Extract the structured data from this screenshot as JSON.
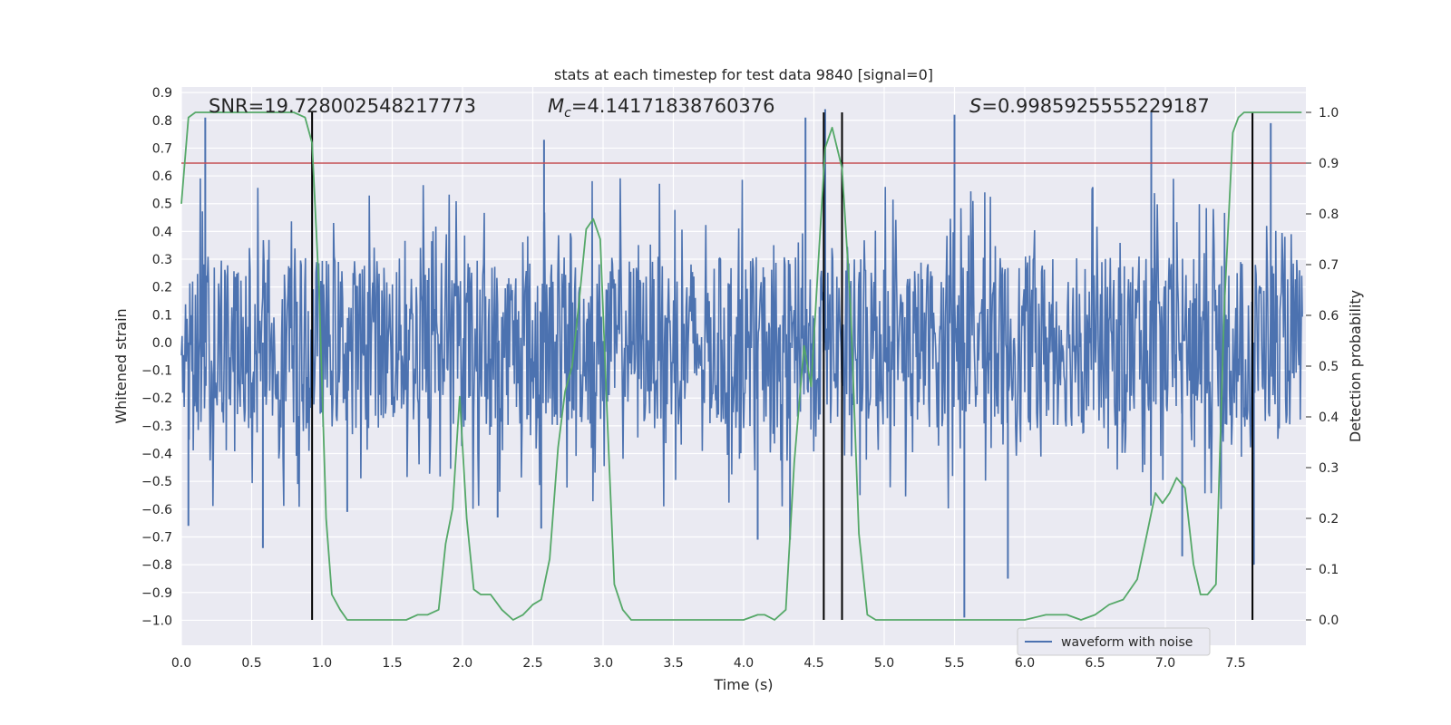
{
  "chart_data": {
    "type": "line",
    "title": "stats at each timestep for test data 9840 [signal=0]",
    "xlabel": "Time (s)",
    "ylabel_left": "Whitened strain",
    "ylabel_right": "Detection probability",
    "xlim": [
      0.0,
      8.0
    ],
    "ylim_left": [
      -1.09,
      0.92
    ],
    "ylim_right": [
      -0.05,
      1.05
    ],
    "grid": true,
    "x_ticks": [
      "0.0",
      "0.5",
      "1.0",
      "1.5",
      "2.0",
      "2.5",
      "3.0",
      "3.5",
      "4.0",
      "4.5",
      "5.0",
      "5.5",
      "6.0",
      "6.5",
      "7.0",
      "7.5"
    ],
    "y_ticks_left": [
      "0.9",
      "0.8",
      "0.7",
      "0.6",
      "0.5",
      "0.4",
      "0.3",
      "0.2",
      "0.1",
      "0.0",
      "-0.1",
      "-0.2",
      "-0.3",
      "-0.4",
      "-0.5",
      "-0.6",
      "-0.7",
      "-0.8",
      "-0.9",
      "-1.0"
    ],
    "y_ticks_right": [
      "1.0",
      "0.9",
      "0.8",
      "0.7",
      "0.6",
      "0.5",
      "0.4",
      "0.3",
      "0.2",
      "0.1",
      "0.0"
    ],
    "annotations": {
      "snr": "SNR=19.728002548217773",
      "mc_symbol": "M",
      "mc_sub": "c",
      "mc_value": "=4.14171838760376",
      "s_symbol": "S",
      "s_value": "=0.9985925555229187"
    },
    "threshold": {
      "value": 0.9,
      "axis": "right",
      "color": "#c44e52"
    },
    "vertical_lines": [
      0.93,
      4.57,
      4.7,
      7.62
    ],
    "waveform": {
      "name": "waveform with noise",
      "color": "#4c72b0",
      "typical_range": [
        -0.45,
        0.45
      ],
      "peaks": [
        {
          "t": 0.17,
          "v": 0.81
        },
        {
          "t": 0.58,
          "v": -0.74
        },
        {
          "t": 0.05,
          "v": -0.66
        },
        {
          "t": 1.18,
          "v": -0.61
        },
        {
          "t": 2.25,
          "v": -0.63
        },
        {
          "t": 2.56,
          "v": -0.67
        },
        {
          "t": 2.58,
          "v": 0.73
        },
        {
          "t": 4.44,
          "v": 0.81
        },
        {
          "t": 4.58,
          "v": 0.84
        },
        {
          "t": 4.1,
          "v": -0.71
        },
        {
          "t": 4.33,
          "v": -0.71
        },
        {
          "t": 5.5,
          "v": 0.82
        },
        {
          "t": 5.57,
          "v": -0.99
        },
        {
          "t": 5.88,
          "v": -0.85
        },
        {
          "t": 6.9,
          "v": 0.83
        },
        {
          "t": 7.12,
          "v": -0.77
        },
        {
          "t": 7.63,
          "v": -0.8
        },
        {
          "t": 7.75,
          "v": 0.79
        }
      ]
    },
    "probability": {
      "name": "detection probability",
      "color": "#55a868",
      "x": [
        0.0,
        0.05,
        0.1,
        0.2,
        0.3,
        0.5,
        0.7,
        0.8,
        0.88,
        0.93,
        0.98,
        1.03,
        1.07,
        1.13,
        1.18,
        1.3,
        1.45,
        1.6,
        1.68,
        1.75,
        1.83,
        1.88,
        1.93,
        1.98,
        2.03,
        2.08,
        2.13,
        2.2,
        2.28,
        2.36,
        2.43,
        2.5,
        2.56,
        2.62,
        2.68,
        2.73,
        2.78,
        2.83,
        2.88,
        2.93,
        2.98,
        3.03,
        3.08,
        3.14,
        3.2,
        3.26,
        3.32,
        3.4,
        3.6,
        3.8,
        4.0,
        4.1,
        4.15,
        4.22,
        4.3,
        4.36,
        4.43,
        4.48,
        4.53,
        4.58,
        4.63,
        4.7,
        4.76,
        4.82,
        4.88,
        4.94,
        5.0,
        5.2,
        5.4,
        5.6,
        5.8,
        6.0,
        6.15,
        6.3,
        6.4,
        6.5,
        6.55,
        6.6,
        6.7,
        6.8,
        6.87,
        6.93,
        6.98,
        7.03,
        7.08,
        7.14,
        7.2,
        7.25,
        7.3,
        7.36,
        7.42,
        7.48,
        7.52,
        7.56,
        7.6,
        7.66,
        7.72,
        7.78,
        7.85,
        7.92,
        7.97
      ],
      "y": [
        0.82,
        0.99,
        1.0,
        1.0,
        1.0,
        1.0,
        1.0,
        1.0,
        0.99,
        0.94,
        0.65,
        0.2,
        0.05,
        0.02,
        0.0,
        0.0,
        0.0,
        0.0,
        0.01,
        0.01,
        0.02,
        0.15,
        0.22,
        0.44,
        0.2,
        0.06,
        0.05,
        0.05,
        0.02,
        0.0,
        0.01,
        0.03,
        0.04,
        0.12,
        0.34,
        0.45,
        0.5,
        0.63,
        0.77,
        0.79,
        0.75,
        0.4,
        0.07,
        0.02,
        0.0,
        0.0,
        0.0,
        0.0,
        0.0,
        0.0,
        0.0,
        0.01,
        0.01,
        0.0,
        0.02,
        0.31,
        0.54,
        0.46,
        0.7,
        0.93,
        0.97,
        0.89,
        0.62,
        0.17,
        0.01,
        0.0,
        0.0,
        0.0,
        0.0,
        0.0,
        0.0,
        0.0,
        0.01,
        0.01,
        0.0,
        0.01,
        0.02,
        0.03,
        0.04,
        0.08,
        0.17,
        0.25,
        0.23,
        0.25,
        0.28,
        0.26,
        0.11,
        0.05,
        0.05,
        0.07,
        0.62,
        0.96,
        0.99,
        1.0,
        1.0,
        1.0,
        1.0,
        1.0,
        1.0,
        1.0,
        1.0
      ]
    },
    "legend": {
      "label": "waveform with noise",
      "placement": "lower right"
    }
  }
}
